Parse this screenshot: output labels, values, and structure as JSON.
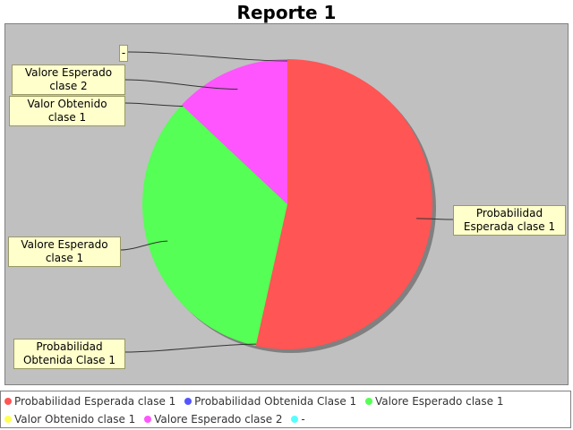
{
  "chart_data": {
    "type": "pie",
    "title": "Reporte 1",
    "slices": [
      {
        "label": "Probabilidad Esperada clase 1",
        "value": 53.5,
        "color": "#ff5555"
      },
      {
        "label": "Probabilidad Obtenida Clase 1",
        "value": 0,
        "color": "#5555ff"
      },
      {
        "label": "Valore Esperado clase 1",
        "value": 33.5,
        "color": "#55ff55"
      },
      {
        "label": "Valor Obtenido clase 1",
        "value": 0,
        "color": "#ffff55"
      },
      {
        "label": "Valore Esperado clase 2",
        "value": 13,
        "color": "#ff55ff"
      },
      {
        "label": "-",
        "value": 0,
        "color": "#55ffff"
      }
    ],
    "pie_labels": [
      {
        "slice": 0,
        "text": "Probabilidad Esperada clase 1"
      },
      {
        "slice": 1,
        "text": "Probabilidad Obtenida Clase 1"
      },
      {
        "slice": 2,
        "text": "Valore Esperado clase 1"
      },
      {
        "slice": 3,
        "text": "Valor Obtenido clase 1"
      },
      {
        "slice": 4,
        "text": "Valore Esperado clase 2"
      },
      {
        "slice": 5,
        "text": "-"
      }
    ],
    "legend": {
      "position": "bottom",
      "rows": [
        [
          {
            "text": "Probabilidad Esperada clase 1",
            "color": "#ff5555"
          },
          {
            "text": "Probabilidad Obtenida Clase 1",
            "color": "#5555ff"
          },
          {
            "text": "Valore Esperado clase 1",
            "color": "#55ff55"
          }
        ],
        [
          {
            "text": "Valor Obtenido clase 1",
            "color": "#ffff55"
          },
          {
            "text": "Valore Esperado clase 2",
            "color": "#ff55ff"
          },
          {
            "text": "-",
            "color": "#55ffff"
          }
        ]
      ]
    }
  }
}
